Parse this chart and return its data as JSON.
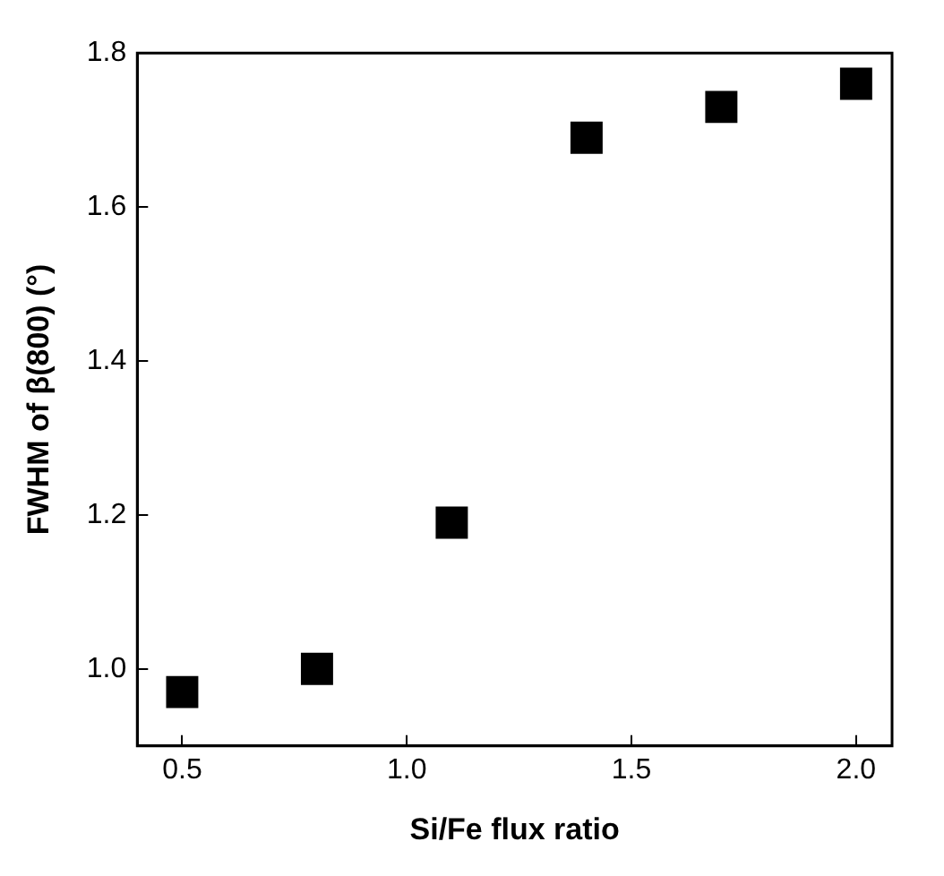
{
  "chart_data": {
    "type": "scatter",
    "xlabel": "Si/Fe flux ratio",
    "ylabel": "FWHM of β(800) (°)",
    "x": [
      0.5,
      0.8,
      1.1,
      1.4,
      1.7,
      2.0
    ],
    "series": [
      {
        "color": "#000000",
        "values": [
          0.97,
          1.0,
          1.19,
          1.69,
          1.73,
          1.76
        ]
      }
    ],
    "xlim": [
      0.4,
      2.08
    ],
    "xticks": [
      {
        "value": 0.5,
        "label": "0.5"
      },
      {
        "value": 1.0,
        "label": "1.0"
      },
      {
        "value": 1.5,
        "label": "1.5"
      },
      {
        "value": 2.0,
        "label": "2.0"
      }
    ],
    "ylim": [
      0.9,
      1.8
    ],
    "yticks": [
      {
        "value": 1.0,
        "label": "1.0"
      },
      {
        "value": 1.2,
        "label": "1.2"
      },
      {
        "value": 1.4,
        "label": "1.4"
      },
      {
        "value": 1.6,
        "label": "1.6"
      },
      {
        "value": 1.8,
        "label": "1.8"
      }
    ],
    "grid": false,
    "legend": false,
    "marker": "square"
  }
}
